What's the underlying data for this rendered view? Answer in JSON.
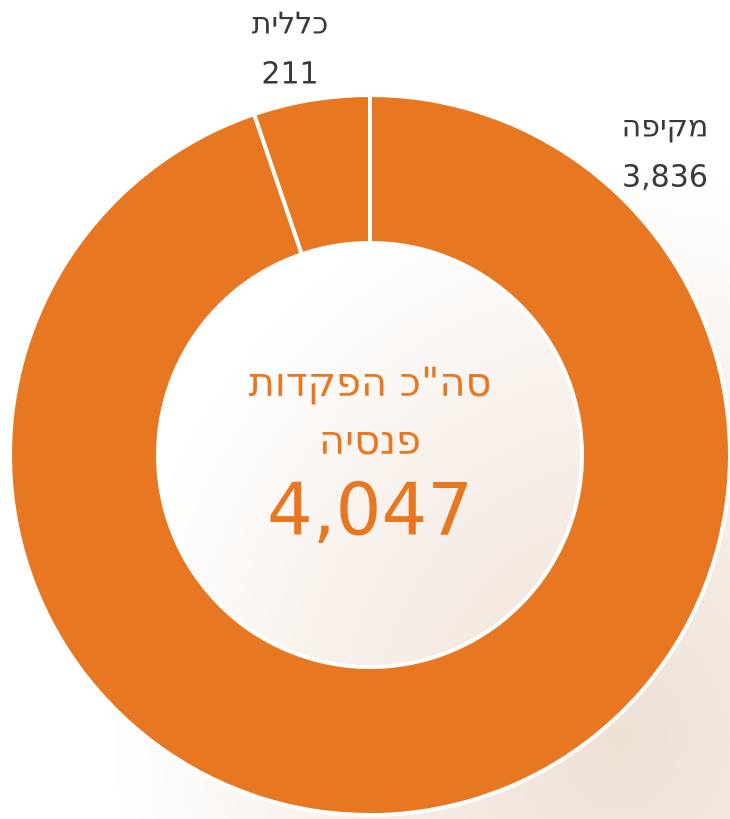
{
  "chart_data": {
    "type": "donut",
    "categories": [
      "מקיפה",
      "כללית"
    ],
    "values": [
      3836,
      211
    ],
    "value_labels": [
      "3,836",
      "211"
    ],
    "color": "#e87722",
    "center_title": [
      "סה\"כ הפקדות",
      "פנסיה"
    ],
    "total": 4047,
    "total_label": "4,047"
  }
}
